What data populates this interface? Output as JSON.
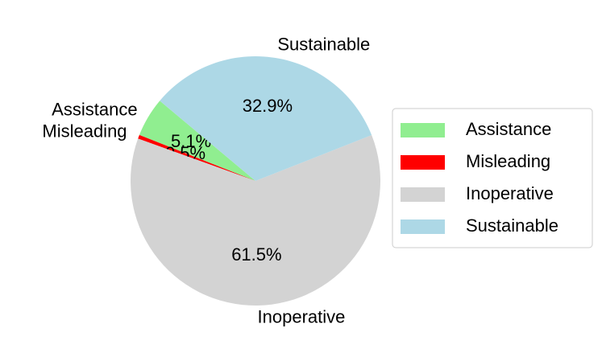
{
  "chart_data": {
    "type": "pie",
    "categories": [
      "Assistance",
      "Misleading",
      "Inoperative",
      "Sustainable"
    ],
    "values": [
      5.1,
      0.5,
      61.5,
      32.9
    ],
    "value_labels": [
      "5.1%",
      "0.5%",
      "61.5%",
      "32.9%"
    ],
    "colors": [
      "#90ee90",
      "#ff0000",
      "#d3d3d3",
      "#add8e6"
    ],
    "startangle": 140,
    "legend": "right"
  }
}
